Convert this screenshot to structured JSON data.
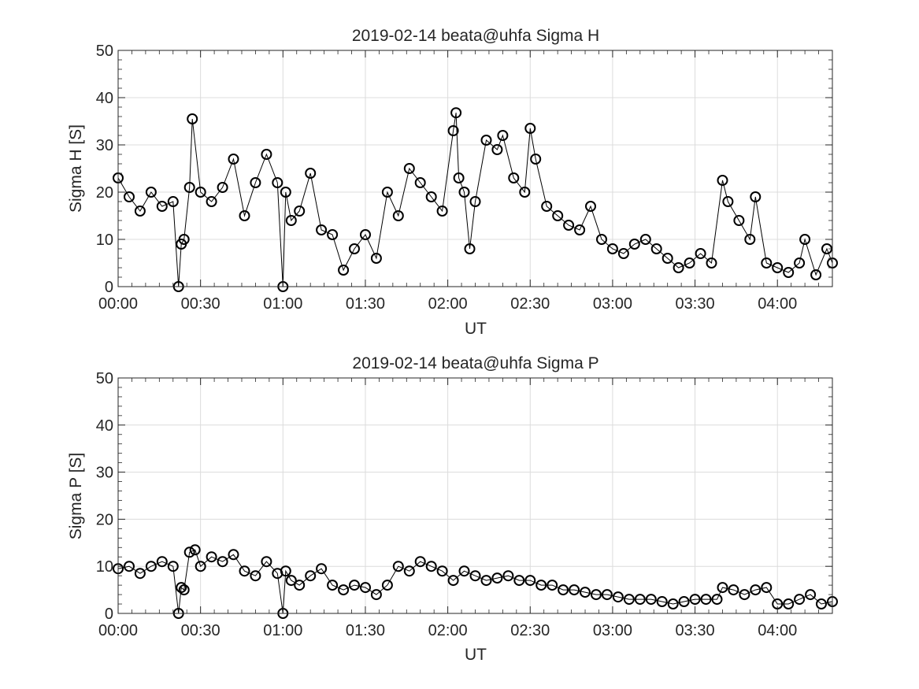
{
  "figure": {
    "background": "#ffffff",
    "marker_color": "#000000",
    "line_color": "#000000",
    "marker": "circle"
  },
  "chart_data": [
    {
      "type": "line",
      "title": "2019-02-14  beata@uhfa Sigma H",
      "xlabel": "UT",
      "ylabel": "Sigma H [S]",
      "xlim": [
        "00:00",
        "04:20"
      ],
      "ylim": [
        0,
        50
      ],
      "yticks": [
        "0",
        "10",
        "20",
        "30",
        "40",
        "50"
      ],
      "xticks": [
        "00:00",
        "00:30",
        "01:00",
        "01:30",
        "02:00",
        "02:30",
        "03:00",
        "03:30",
        "04:00"
      ],
      "grid": true,
      "series": [
        {
          "x": [
            "00:00",
            "00:04",
            "00:08",
            "00:12",
            "00:16",
            "00:20",
            "00:22",
            "00:23",
            "00:24",
            "00:26",
            "00:27",
            "00:30",
            "00:34",
            "00:38",
            "00:42",
            "00:46",
            "00:50",
            "00:54",
            "00:58",
            "01:00",
            "01:01",
            "01:03",
            "01:06",
            "01:10",
            "01:14",
            "01:18",
            "01:22",
            "01:26",
            "01:30",
            "01:34",
            "01:38",
            "01:42",
            "01:46",
            "01:50",
            "01:54",
            "01:58",
            "02:02",
            "02:03",
            "02:04",
            "02:06",
            "02:08",
            "02:10",
            "02:14",
            "02:18",
            "02:20",
            "02:24",
            "02:28",
            "02:30",
            "02:32",
            "02:36",
            "02:40",
            "02:44",
            "02:48",
            "02:52",
            "02:56",
            "03:00",
            "03:04",
            "03:08",
            "03:12",
            "03:16",
            "03:20",
            "03:24",
            "03:28",
            "03:32",
            "03:36",
            "03:40",
            "03:42",
            "03:46",
            "03:50",
            "03:52",
            "03:56",
            "04:00",
            "04:04",
            "04:08",
            "04:10",
            "04:14",
            "04:18",
            "04:20"
          ],
          "y": [
            23,
            19,
            16,
            20,
            17,
            18,
            0,
            9,
            10,
            21,
            35.5,
            20,
            18,
            21,
            27,
            15,
            22,
            28,
            22,
            0,
            20,
            14,
            16,
            24,
            12,
            11,
            3.5,
            8,
            11,
            6,
            20,
            15,
            25,
            22,
            19,
            16,
            33,
            36.8,
            23,
            20,
            8,
            18,
            31,
            29,
            32,
            23,
            20,
            33.5,
            27,
            17,
            15,
            13,
            12,
            17,
            10,
            8,
            7,
            9,
            10,
            8,
            6,
            4,
            5,
            7,
            5,
            22.5,
            18,
            14,
            10,
            19,
            5,
            4,
            3,
            5,
            10,
            2.5,
            8,
            5
          ]
        }
      ]
    },
    {
      "type": "line",
      "title": "2019-02-14  beata@uhfa Sigma P",
      "xlabel": "UT",
      "ylabel": "Sigma P [S]",
      "xlim": [
        "00:00",
        "04:20"
      ],
      "ylim": [
        0,
        50
      ],
      "yticks": [
        "0",
        "10",
        "20",
        "30",
        "40",
        "50"
      ],
      "xticks": [
        "00:00",
        "00:30",
        "01:00",
        "01:30",
        "02:00",
        "02:30",
        "03:00",
        "03:30",
        "04:00"
      ],
      "grid": true,
      "series": [
        {
          "x": [
            "00:00",
            "00:04",
            "00:08",
            "00:12",
            "00:16",
            "00:20",
            "00:22",
            "00:23",
            "00:24",
            "00:26",
            "00:28",
            "00:30",
            "00:34",
            "00:38",
            "00:42",
            "00:46",
            "00:50",
            "00:54",
            "00:58",
            "01:00",
            "01:01",
            "01:03",
            "01:06",
            "01:10",
            "01:14",
            "01:18",
            "01:22",
            "01:26",
            "01:30",
            "01:34",
            "01:38",
            "01:42",
            "01:46",
            "01:50",
            "01:54",
            "01:58",
            "02:02",
            "02:06",
            "02:10",
            "02:14",
            "02:18",
            "02:22",
            "02:26",
            "02:30",
            "02:34",
            "02:38",
            "02:42",
            "02:46",
            "02:50",
            "02:54",
            "02:58",
            "03:02",
            "03:06",
            "03:10",
            "03:14",
            "03:18",
            "03:22",
            "03:26",
            "03:30",
            "03:34",
            "03:38",
            "03:40",
            "03:44",
            "03:48",
            "03:52",
            "03:56",
            "04:00",
            "04:04",
            "04:08",
            "04:12",
            "04:16",
            "04:20"
          ],
          "y": [
            9.5,
            10,
            8.5,
            10,
            11,
            10,
            0,
            5.5,
            5,
            13,
            13.5,
            10,
            12,
            11,
            12.5,
            9,
            8,
            11,
            8.5,
            0,
            9,
            7,
            6,
            8,
            9.5,
            6,
            5,
            6,
            5.5,
            4,
            6,
            10,
            9,
            11,
            10,
            9,
            7,
            9,
            8,
            7,
            7.5,
            8,
            7,
            7,
            6,
            6,
            5,
            5,
            4.5,
            4,
            4,
            3.5,
            3,
            3,
            3,
            2.5,
            2,
            2.5,
            3,
            3,
            3,
            5.5,
            5,
            4,
            5,
            5.5,
            2,
            2,
            3,
            4,
            2,
            2.5
          ]
        }
      ]
    }
  ]
}
